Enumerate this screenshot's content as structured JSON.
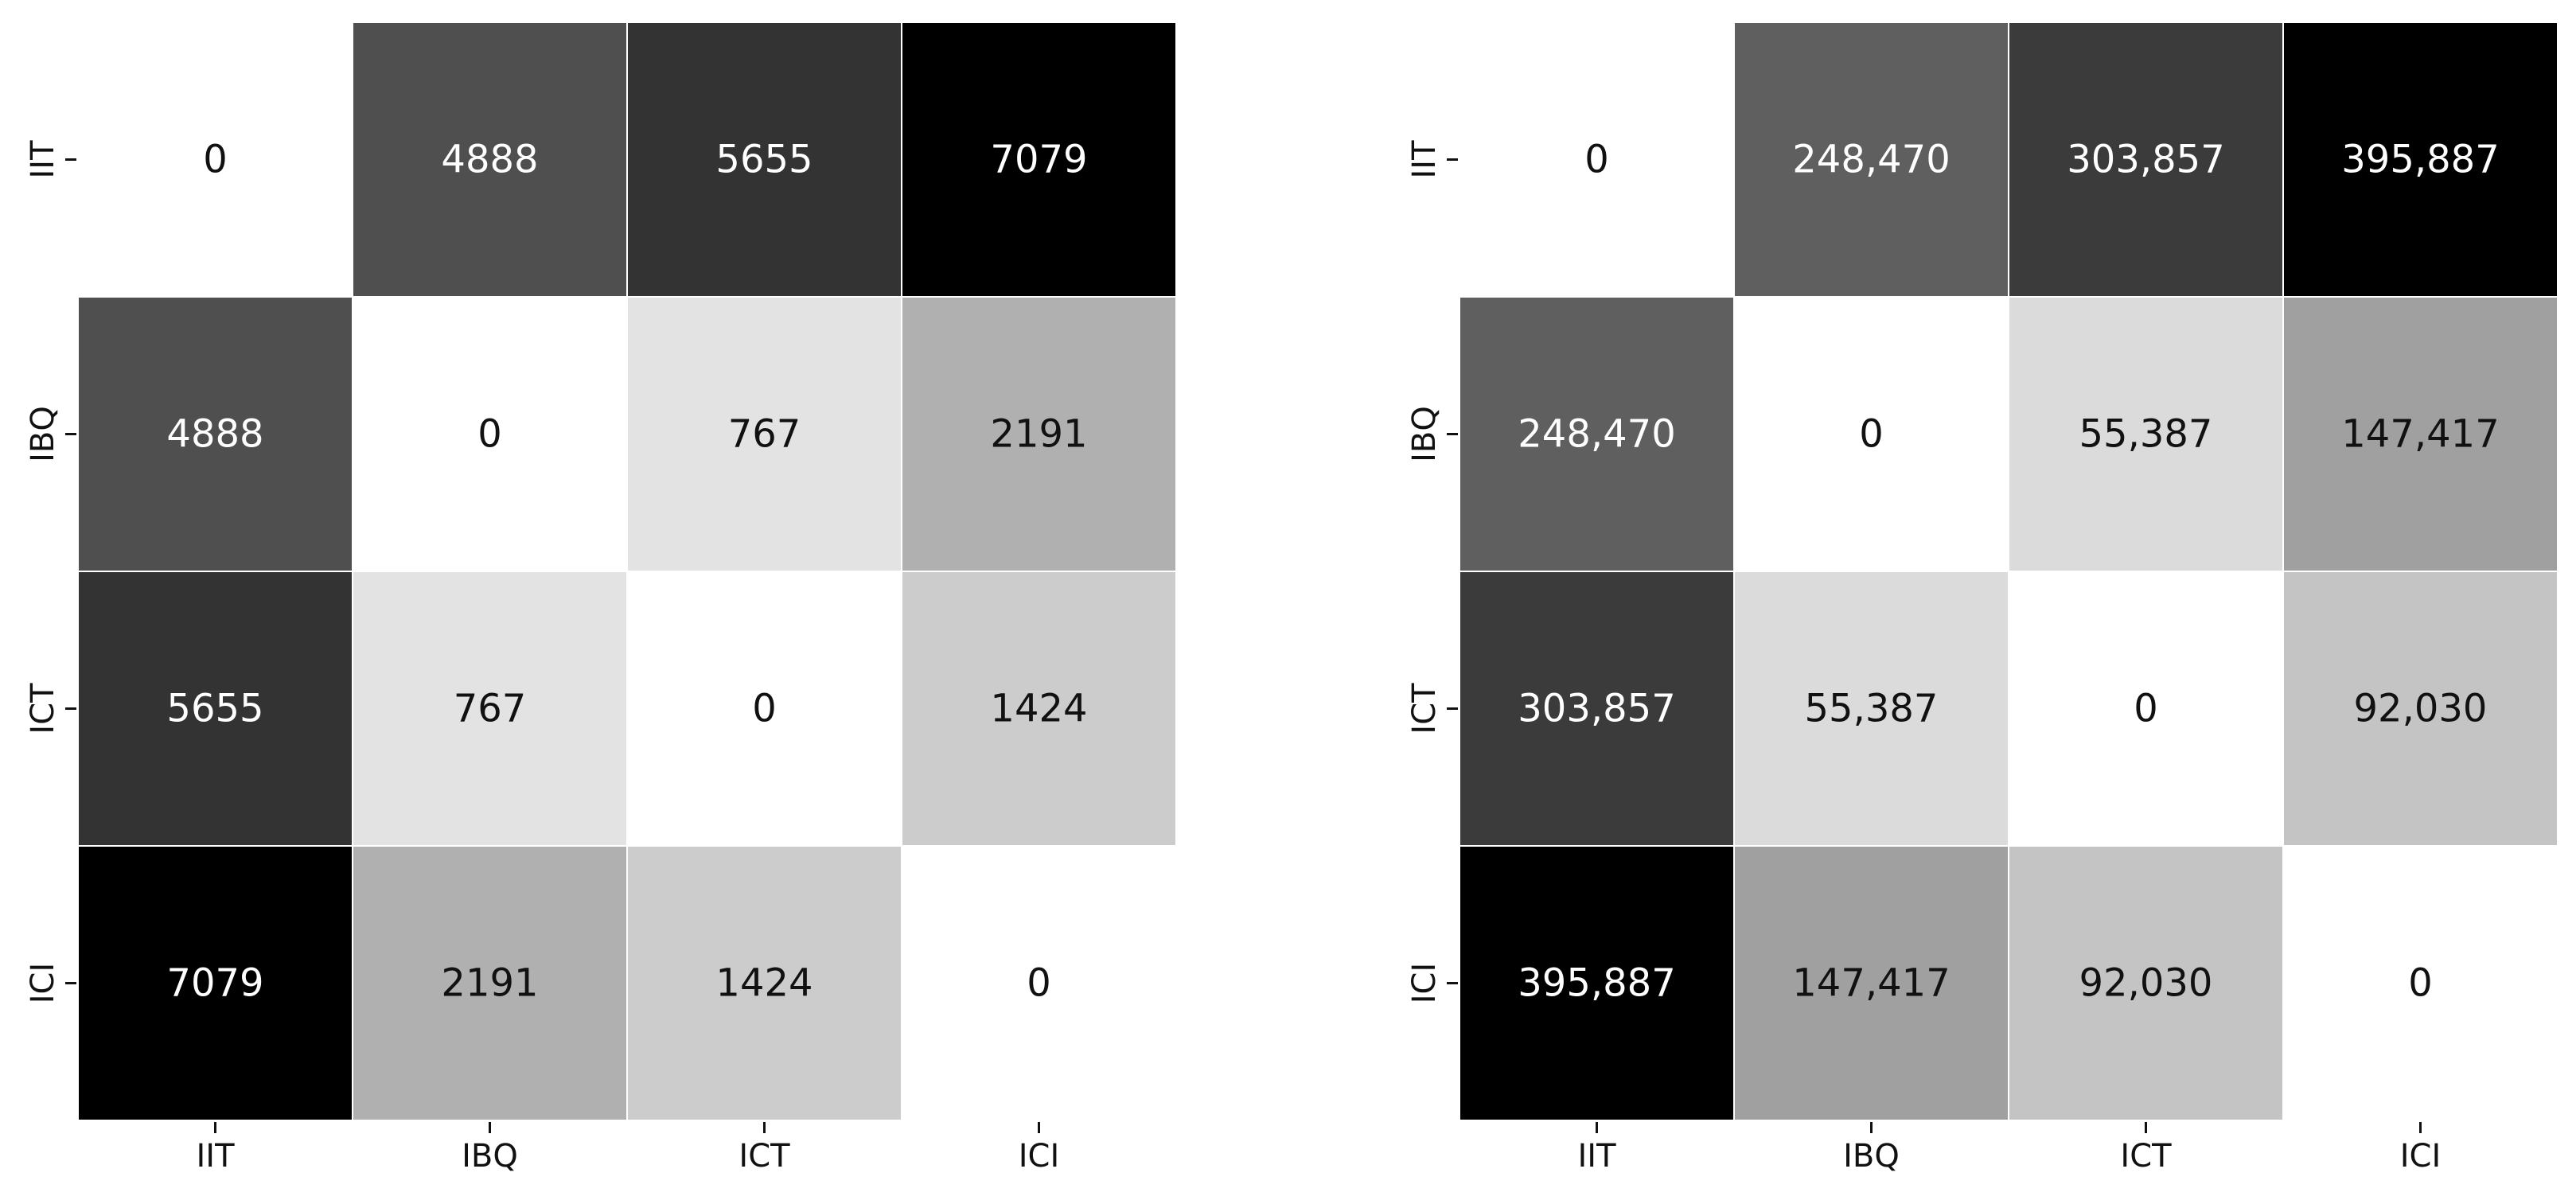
{
  "chart_data": [
    {
      "type": "heatmap",
      "x_labels": [
        "IIT",
        "IBQ",
        "ICT",
        "ICI"
      ],
      "y_labels": [
        "IIT",
        "IBQ",
        "ICT",
        "ICI"
      ],
      "values": [
        [
          0,
          4888,
          5655,
          7079
        ],
        [
          4888,
          0,
          767,
          2191
        ],
        [
          5655,
          767,
          0,
          1424
        ],
        [
          7079,
          2191,
          1424,
          0
        ]
      ],
      "cell_labels": [
        [
          "0",
          "4888",
          "5655",
          "7079"
        ],
        [
          "4888",
          "0",
          "767",
          "2191"
        ],
        [
          "5655",
          "767",
          "0",
          "1424"
        ],
        [
          "7079",
          "2191",
          "1424",
          "0"
        ]
      ],
      "colormap": "greys",
      "vmin": 0,
      "vmax": 7079,
      "grid": true
    },
    {
      "type": "heatmap",
      "x_labels": [
        "IIT",
        "IBQ",
        "ICT",
        "ICI"
      ],
      "y_labels": [
        "IIT",
        "IBQ",
        "ICT",
        "ICI"
      ],
      "values": [
        [
          0,
          248470,
          303857,
          395887
        ],
        [
          248470,
          0,
          55387,
          147417
        ],
        [
          303857,
          55387,
          0,
          92030
        ],
        [
          395887,
          147417,
          92030,
          0
        ]
      ],
      "cell_labels": [
        [
          "0",
          "248,470",
          "303,857",
          "395,887"
        ],
        [
          "248,470",
          "0",
          "55,387",
          "147,417"
        ],
        [
          "303,857",
          "55,387",
          "0",
          "92,030"
        ],
        [
          "395,887",
          "147,417",
          "92,030",
          "0"
        ]
      ],
      "colormap": "greys",
      "vmin": 0,
      "vmax": 395887,
      "grid": true
    }
  ]
}
